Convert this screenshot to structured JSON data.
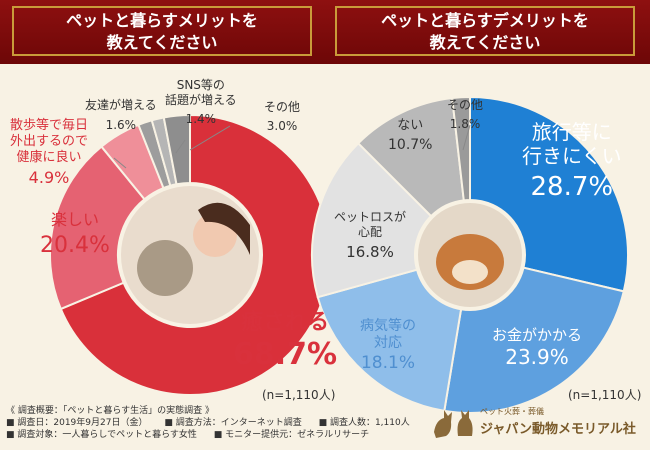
{
  "header": {
    "left_title_line1": "ペットと暮らすメリットを",
    "left_title_line2": "教えてください",
    "right_title_line1": "ペットと暮らすデメリットを",
    "right_title_line2": "教えてください"
  },
  "chart_data": [
    {
      "type": "pie",
      "title": "ペットと暮らすメリットを教えてください",
      "categories": [
        "癒される",
        "楽しい",
        "散歩等で毎日外出するので健康に良い",
        "友達が増える",
        "SNS等の話題が増える",
        "その他"
      ],
      "values": [
        68.7,
        20.4,
        4.9,
        1.6,
        1.4,
        3.0
      ],
      "colors": [
        "#d9303a",
        "#e56272",
        "#ef8f99",
        "#9d9d9d",
        "#b5b5b5",
        "#8e8e8e"
      ],
      "value_labels": [
        "68.7%",
        "20.4%",
        "4.9%",
        "1.6%",
        "1.4%",
        "3.0%"
      ],
      "sample_note": "(n=1,110人)"
    },
    {
      "type": "pie",
      "title": "ペットと暮らすデメリットを教えてください",
      "categories": [
        "旅行等に行きにくい",
        "お金がかかる",
        "病気等の対応",
        "ペットロスが心配",
        "ない",
        "その他"
      ],
      "values": [
        28.7,
        23.9,
        18.1,
        16.8,
        10.7,
        1.8
      ],
      "colors": [
        "#1f80d4",
        "#5ea0df",
        "#8fbeea",
        "#e2e2e2",
        "#b9b9b9",
        "#9a9a9a"
      ],
      "value_labels": [
        "28.7%",
        "23.9%",
        "18.1%",
        "16.8%",
        "10.7%",
        "1.8%"
      ],
      "sample_note": "(n=1,110人)"
    }
  ],
  "labels": {
    "m_iyasareru": "癒される",
    "m_iyasareru_pct": "68.7%",
    "m_tanoshii": "楽しい",
    "m_tanoshii_pct": "20.4%",
    "m_sanpo_1": "散歩等で毎日",
    "m_sanpo_2": "外出するので",
    "m_sanpo_3": "健康に良い",
    "m_sanpo_pct": "4.9%",
    "m_tomodachi": "友達が増える",
    "m_tomodachi_pct": "1.6%",
    "m_sns_1": "SNS等の",
    "m_sns_2": "話題が増える",
    "m_sns_pct": "1.4%",
    "m_sonota": "その他",
    "m_sonota_pct": "3.0%",
    "d_ryoko_1": "旅行等に",
    "d_ryoko_2": "行きにくい",
    "d_ryoko_pct": "28.7%",
    "d_okane": "お金がかかる",
    "d_okane_pct": "23.9%",
    "d_byoki_1": "病気等の",
    "d_byoki_2": "対応",
    "d_byoki_pct": "18.1%",
    "d_petloss_1": "ペットロスが",
    "d_petloss_2": "心配",
    "d_petloss_pct": "16.8%",
    "d_nai": "ない",
    "d_nai_pct": "10.7%",
    "d_sonota": "その他",
    "d_sonota_pct": "1.8%",
    "n_left": "(n=1,110人)",
    "n_right": "(n=1,110人)"
  },
  "footer": {
    "line1": "《 調査概要：「ペットと暮らす生活」の実態調査 》",
    "line2a": "■ 調査日：2019年9月27日（金）",
    "line2b": "■ 調査方法：インターネット調査",
    "line2c": "■ 調査人数：1,110人",
    "line3a": "■ 調査対象：一人暮らしでペットと暮らす女性",
    "line3b": "■ モニター提供元：ゼネラルリサーチ"
  },
  "logo": {
    "sub": "ペット火葬・葬儀",
    "main": "ジャパン動物メモリアル社"
  }
}
